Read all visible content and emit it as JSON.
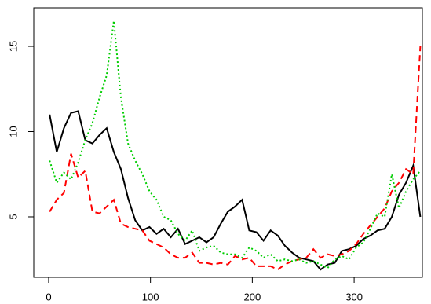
{
  "chart_data": {
    "type": "line",
    "x": [
      1,
      8,
      15,
      22,
      29,
      36,
      43,
      50,
      57,
      64,
      71,
      78,
      85,
      92,
      99,
      106,
      113,
      120,
      127,
      134,
      141,
      148,
      155,
      162,
      169,
      176,
      183,
      190,
      197,
      204,
      211,
      218,
      225,
      232,
      239,
      246,
      253,
      260,
      267,
      274,
      281,
      288,
      295,
      302,
      309,
      316,
      323,
      330,
      337,
      344,
      351,
      358,
      365
    ],
    "series": [
      {
        "color": "#000000",
        "linestyle": "solid",
        "values": [
          11,
          8.8,
          10.2,
          11.1,
          11.2,
          9.5,
          9.3,
          9.8,
          10.2,
          8.8,
          7.8,
          6.1,
          4.8,
          4.2,
          4.4,
          4,
          4.3,
          3.8,
          4.3,
          3.4,
          3.6,
          3.8,
          3.5,
          3.8,
          4.6,
          5.3,
          5.6,
          6,
          4.2,
          4.1,
          3.6,
          4.2,
          3.9,
          3.3,
          2.9,
          2.6,
          2.5,
          2.4,
          1.9,
          2.2,
          2.3,
          3,
          3.1,
          3.3,
          3.7,
          3.9,
          4.2,
          4.3,
          5,
          6.3,
          7,
          8,
          5
        ]
      },
      {
        "color": "#ff0000",
        "linestyle": "dashed",
        "values": [
          5.3,
          6,
          6.4,
          8.7,
          7.3,
          7.7,
          5.3,
          5.2,
          5.6,
          6,
          4.6,
          4.4,
          4.3,
          4.2,
          3.6,
          3.4,
          3.2,
          2.8,
          2.6,
          2.6,
          2.9,
          2.3,
          2.3,
          2.2,
          2.3,
          2.2,
          2.7,
          2.5,
          2.6,
          2.1,
          2.1,
          2.1,
          1.9,
          2.2,
          2.4,
          2.5,
          2.6,
          3.1,
          2.6,
          2.8,
          2.7,
          2.8,
          3,
          3.4,
          4,
          4.5,
          5,
          5.5,
          6.5,
          7,
          7.8,
          7.5,
          15
        ]
      },
      {
        "color": "#00cd00",
        "linestyle": "dotted",
        "values": [
          8.3,
          7,
          7.6,
          7.2,
          8.2,
          9.5,
          10.5,
          12,
          13.3,
          16.5,
          12,
          9.3,
          8.3,
          7.5,
          6.5,
          6,
          5,
          4.8,
          4,
          3.6,
          4.2,
          3,
          3.2,
          3.3,
          2.9,
          2.8,
          2.8,
          2.6,
          3.2,
          3,
          2.6,
          2.8,
          2.4,
          2.5,
          2.4,
          2.5,
          2.3,
          2.4,
          2.2,
          2,
          2.5,
          2.7,
          2.5,
          3.2,
          3.5,
          4.3,
          5.2,
          5,
          7.5,
          5.5,
          6.5,
          7.2,
          7.7
        ]
      }
    ],
    "xlim": [
      -14.6,
      367
    ],
    "ylim": [
      1.45,
      17.26
    ],
    "xticks": [
      0,
      100,
      200,
      300
    ],
    "yticks": [
      5,
      10,
      15
    ]
  }
}
